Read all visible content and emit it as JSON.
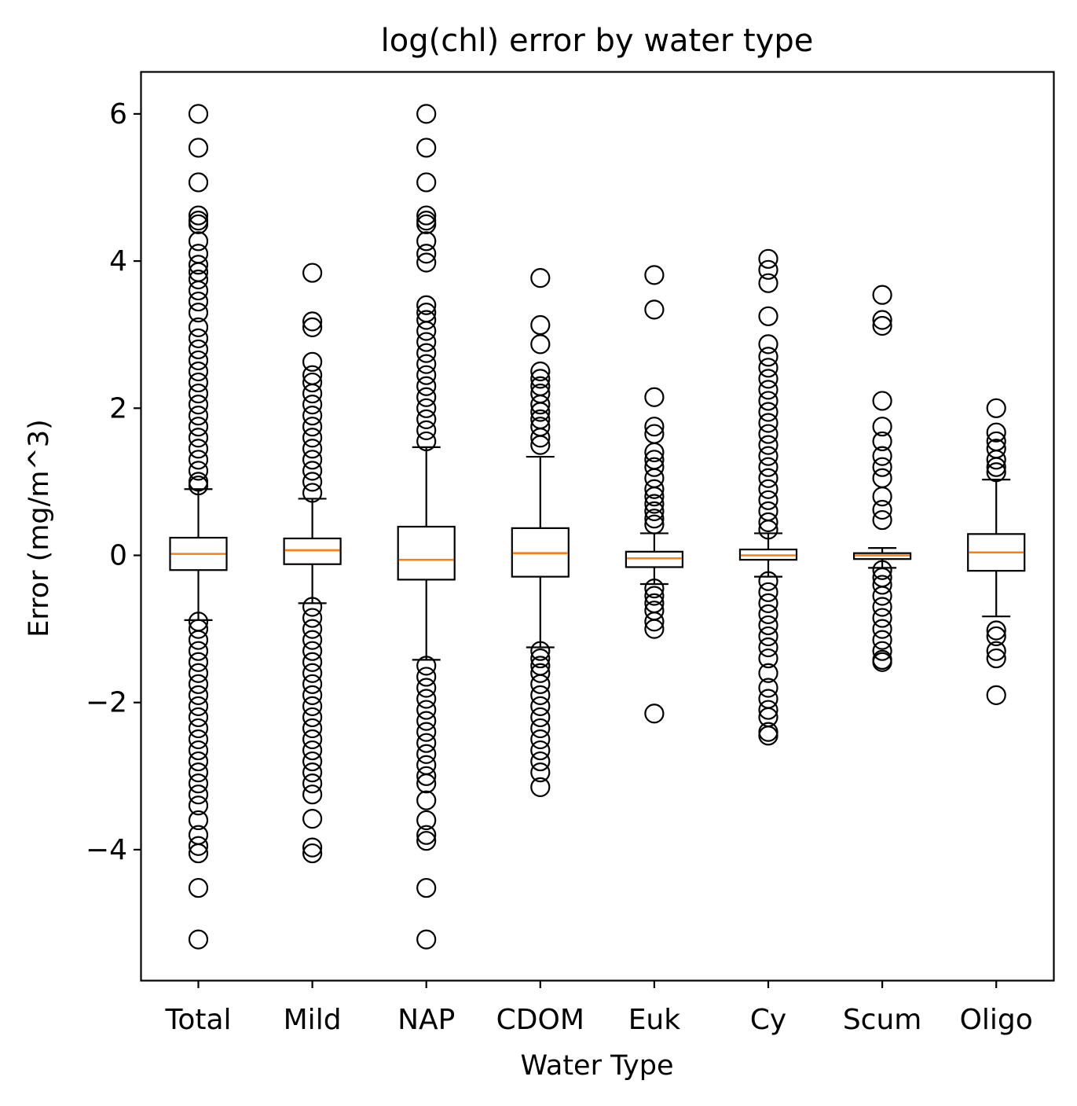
{
  "chart_data": {
    "type": "box",
    "title": "log(chl)  error by water type",
    "xlabel": "Water Type",
    "ylabel": "Error (mg/m^3)",
    "ylim": [
      -5.65,
      6.55
    ],
    "yticks": [
      6,
      4,
      2,
      0,
      -2,
      -4
    ],
    "ytick_labels": [
      "6",
      "4",
      "2",
      "0",
      "−2",
      "−4"
    ],
    "colors": {
      "box": "#000000",
      "median": "#ff7f0e",
      "flier": "#000000"
    },
    "categories": [
      "Total",
      "Mild",
      "NAP",
      "CDOM",
      "Euk",
      "Cy",
      "Scum",
      "Oligo"
    ],
    "boxes": [
      {
        "name": "Total",
        "whislo": -0.88,
        "q1": -0.2,
        "med": 0.02,
        "q3": 0.24,
        "whishi": 0.9,
        "fliers": [
          6.0,
          5.54,
          5.07,
          4.62,
          4.55,
          4.5,
          4.27,
          4.1,
          3.95,
          3.85,
          3.75,
          3.6,
          3.45,
          3.3,
          3.1,
          2.95,
          2.8,
          2.65,
          2.5,
          2.35,
          2.2,
          2.05,
          1.9,
          1.75,
          1.6,
          1.45,
          1.3,
          1.15,
          1.0,
          0.95,
          -0.9,
          -1.0,
          -1.15,
          -1.3,
          -1.45,
          -1.6,
          -1.75,
          -1.9,
          -2.05,
          -2.2,
          -2.35,
          -2.5,
          -2.65,
          -2.8,
          -2.95,
          -3.1,
          -3.25,
          -3.4,
          -3.6,
          -3.8,
          -3.95,
          -4.05,
          -4.52,
          -5.22
        ]
      },
      {
        "name": "Mild",
        "whislo": -0.65,
        "q1": -0.12,
        "med": 0.07,
        "q3": 0.23,
        "whishi": 0.77,
        "fliers": [
          3.84,
          3.18,
          3.1,
          2.63,
          2.45,
          2.35,
          2.2,
          2.05,
          1.9,
          1.75,
          1.6,
          1.45,
          1.3,
          1.15,
          1.0,
          0.85,
          -0.7,
          -0.85,
          -1.0,
          -1.15,
          -1.3,
          -1.45,
          -1.6,
          -1.75,
          -1.9,
          -2.05,
          -2.2,
          -2.35,
          -2.5,
          -2.65,
          -2.8,
          -2.95,
          -3.1,
          -3.25,
          -3.58,
          -3.97,
          -4.05
        ]
      },
      {
        "name": "NAP",
        "whislo": -1.42,
        "q1": -0.33,
        "med": -0.06,
        "q3": 0.39,
        "whishi": 1.47,
        "fliers": [
          6.0,
          5.54,
          5.07,
          4.62,
          4.55,
          4.5,
          4.27,
          4.1,
          3.98,
          3.4,
          3.3,
          3.2,
          3.05,
          2.9,
          2.75,
          2.6,
          2.45,
          2.3,
          2.15,
          2.0,
          1.85,
          1.7,
          1.55,
          -1.5,
          -1.65,
          -1.8,
          -1.95,
          -2.1,
          -2.25,
          -2.4,
          -2.55,
          -2.7,
          -2.85,
          -3.0,
          -3.1,
          -3.33,
          -3.6,
          -3.8,
          -3.88,
          -4.52,
          -5.22
        ]
      },
      {
        "name": "CDOM",
        "whislo": -1.25,
        "q1": -0.29,
        "med": 0.03,
        "q3": 0.37,
        "whishi": 1.34,
        "fliers": [
          3.77,
          3.13,
          2.87,
          2.5,
          2.4,
          2.3,
          2.2,
          2.05,
          1.95,
          1.85,
          1.75,
          1.6,
          1.5,
          -1.3,
          -1.4,
          -1.5,
          -1.6,
          -1.75,
          -1.9,
          -2.05,
          -2.2,
          -2.35,
          -2.5,
          -2.65,
          -2.8,
          -2.95,
          -3.15
        ]
      },
      {
        "name": "Euk",
        "whislo": -0.39,
        "q1": -0.16,
        "med": -0.04,
        "q3": 0.05,
        "whishi": 0.3,
        "fliers": [
          3.81,
          3.34,
          2.15,
          1.75,
          1.65,
          1.4,
          1.3,
          1.2,
          1.05,
          0.9,
          0.8,
          0.7,
          0.6,
          0.5,
          0.42,
          -0.45,
          -0.55,
          -0.65,
          -0.75,
          -0.9,
          -1.0,
          -2.15
        ]
      },
      {
        "name": "Cy",
        "whislo": -0.29,
        "q1": -0.06,
        "med": 0.0,
        "q3": 0.08,
        "whishi": 0.3,
        "fliers": [
          4.03,
          3.88,
          3.7,
          3.25,
          2.87,
          2.7,
          2.55,
          2.4,
          2.25,
          2.1,
          1.95,
          1.8,
          1.65,
          1.5,
          1.35,
          1.2,
          1.05,
          0.9,
          0.75,
          0.6,
          0.45,
          0.35,
          -0.35,
          -0.5,
          -0.65,
          -0.8,
          -0.95,
          -1.1,
          -1.25,
          -1.4,
          -1.6,
          -1.8,
          -1.95,
          -2.1,
          -2.2,
          -2.4,
          -2.45
        ]
      },
      {
        "name": "Scum",
        "whislo": -0.17,
        "q1": -0.05,
        "med": 0.0,
        "q3": 0.03,
        "whishi": 0.1,
        "fliers": [
          3.54,
          3.2,
          3.12,
          2.1,
          1.75,
          1.55,
          1.35,
          1.2,
          1.05,
          0.8,
          0.62,
          0.48,
          -0.2,
          -0.3,
          -0.4,
          -0.55,
          -0.7,
          -0.85,
          -1.0,
          -1.15,
          -1.3,
          -1.42,
          -1.45
        ]
      },
      {
        "name": "Oligo",
        "whislo": -0.83,
        "q1": -0.21,
        "med": 0.04,
        "q3": 0.29,
        "whishi": 1.03,
        "fliers": [
          2.0,
          1.67,
          1.55,
          1.45,
          1.3,
          1.2,
          1.13,
          -1.02,
          -1.1,
          -1.3,
          -1.4,
          -1.9
        ]
      }
    ]
  }
}
